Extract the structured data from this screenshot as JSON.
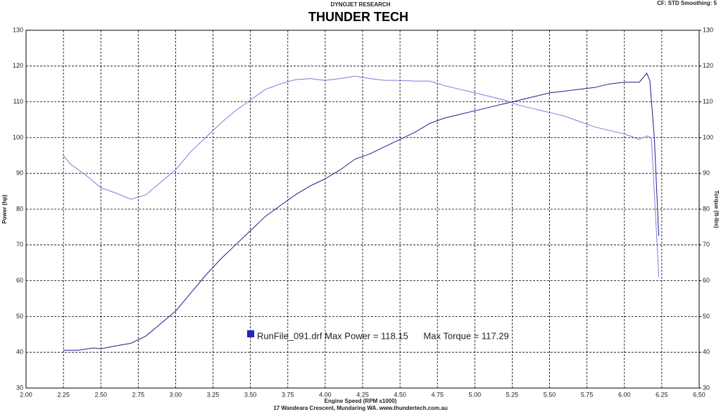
{
  "chart_data": {
    "type": "line",
    "suptitle": "DYNOJET RESEARCH",
    "title": "THUNDER TECH",
    "corner_note": "CF: STD  Smoothing: 5",
    "xlabel": "Engine Speed (RPM x1000)",
    "ylabel": "Power (hp)",
    "y2label": "Torque (ft-lbs)",
    "footer": "17 Wandeara Crescent, Mundaring WA.   www.thundertech.com.au",
    "annotation": "RunFile_091.drf Max Power = 118.15      Max Torque = 117.29",
    "annotation_color": "#2323c8",
    "grid": true,
    "xlim": [
      2,
      6.5
    ],
    "xticks": [
      {
        "value": 2,
        "label": "2.00"
      },
      {
        "value": 2.25,
        "label": "2.25"
      },
      {
        "value": 2.5,
        "label": "2.50"
      },
      {
        "value": 2.75,
        "label": "2.75"
      },
      {
        "value": 3,
        "label": "3.00"
      },
      {
        "value": 3.25,
        "label": "3.25"
      },
      {
        "value": 3.5,
        "label": "3.50"
      },
      {
        "value": 3.75,
        "label": "3.75"
      },
      {
        "value": 4,
        "label": "4.00"
      },
      {
        "value": 4.25,
        "label": "4.25"
      },
      {
        "value": 4.5,
        "label": "4.50"
      },
      {
        "value": 4.75,
        "label": "4.75"
      },
      {
        "value": 5,
        "label": "5.00"
      },
      {
        "value": 5.25,
        "label": "5.25"
      },
      {
        "value": 5.5,
        "label": "5.50"
      },
      {
        "value": 5.75,
        "label": "5.75"
      },
      {
        "value": 6,
        "label": "6.00"
      },
      {
        "value": 6.25,
        "label": "6.25"
      },
      {
        "value": 6.5,
        "label": "6.50"
      }
    ],
    "ylim": [
      30,
      130
    ],
    "yticks": [
      30,
      40,
      50,
      60,
      70,
      80,
      90,
      100,
      110,
      120,
      130
    ],
    "y2lim": [
      30,
      130
    ],
    "y2ticks": [
      30,
      40,
      50,
      60,
      70,
      80,
      90,
      100,
      110,
      120,
      130
    ],
    "series": [
      {
        "color": "#1c1c8a",
        "x": [
          2.25,
          2.35,
          2.45,
          2.5,
          2.6,
          2.7,
          2.8,
          2.9,
          3.0,
          3.1,
          3.2,
          3.3,
          3.4,
          3.5,
          3.6,
          3.7,
          3.8,
          3.9,
          4.0,
          4.1,
          4.2,
          4.3,
          4.4,
          4.5,
          4.6,
          4.7,
          4.8,
          4.9,
          5.0,
          5.1,
          5.2,
          5.3,
          5.4,
          5.5,
          5.6,
          5.7,
          5.8,
          5.9,
          6.0,
          6.05,
          6.1,
          6.15,
          6.17,
          6.2,
          6.23
        ],
        "values": [
          40.6,
          40.6,
          41.2,
          41,
          41.8,
          42.5,
          44.5,
          48,
          51.5,
          56.5,
          61.5,
          66,
          70,
          74,
          78,
          81,
          84,
          86.5,
          88.5,
          91,
          94,
          95.5,
          97.5,
          99.5,
          101.5,
          104,
          105.5,
          106.5,
          107.5,
          108.5,
          109.5,
          110.5,
          111.5,
          112.5,
          113,
          113.5,
          114,
          115,
          115.5,
          115.5,
          115.5,
          118,
          116,
          100,
          72.5
        ]
      },
      {
        "color": "#7c7cd8",
        "axis": "y2",
        "x": [
          2.25,
          2.3,
          2.4,
          2.5,
          2.6,
          2.7,
          2.8,
          2.9,
          3.0,
          3.1,
          3.2,
          3.3,
          3.4,
          3.5,
          3.6,
          3.7,
          3.8,
          3.9,
          4.0,
          4.1,
          4.2,
          4.3,
          4.4,
          4.5,
          4.6,
          4.7,
          4.8,
          4.9,
          5.0,
          5.1,
          5.2,
          5.3,
          5.4,
          5.5,
          5.6,
          5.7,
          5.8,
          5.9,
          6.0,
          6.1,
          6.15,
          6.18,
          6.2,
          6.23
        ],
        "values": [
          95,
          92.5,
          89.5,
          86,
          84.5,
          82.8,
          84,
          87.5,
          91,
          96,
          100,
          104,
          107.5,
          110.5,
          113.5,
          115,
          116.2,
          116.5,
          116,
          116.5,
          117.2,
          116.5,
          116,
          116,
          115.8,
          115.8,
          114.5,
          113.5,
          112.5,
          111.5,
          110.5,
          109,
          108,
          107,
          106,
          104.5,
          103,
          102,
          101,
          99.5,
          100.5,
          100,
          85,
          61
        ]
      }
    ]
  }
}
